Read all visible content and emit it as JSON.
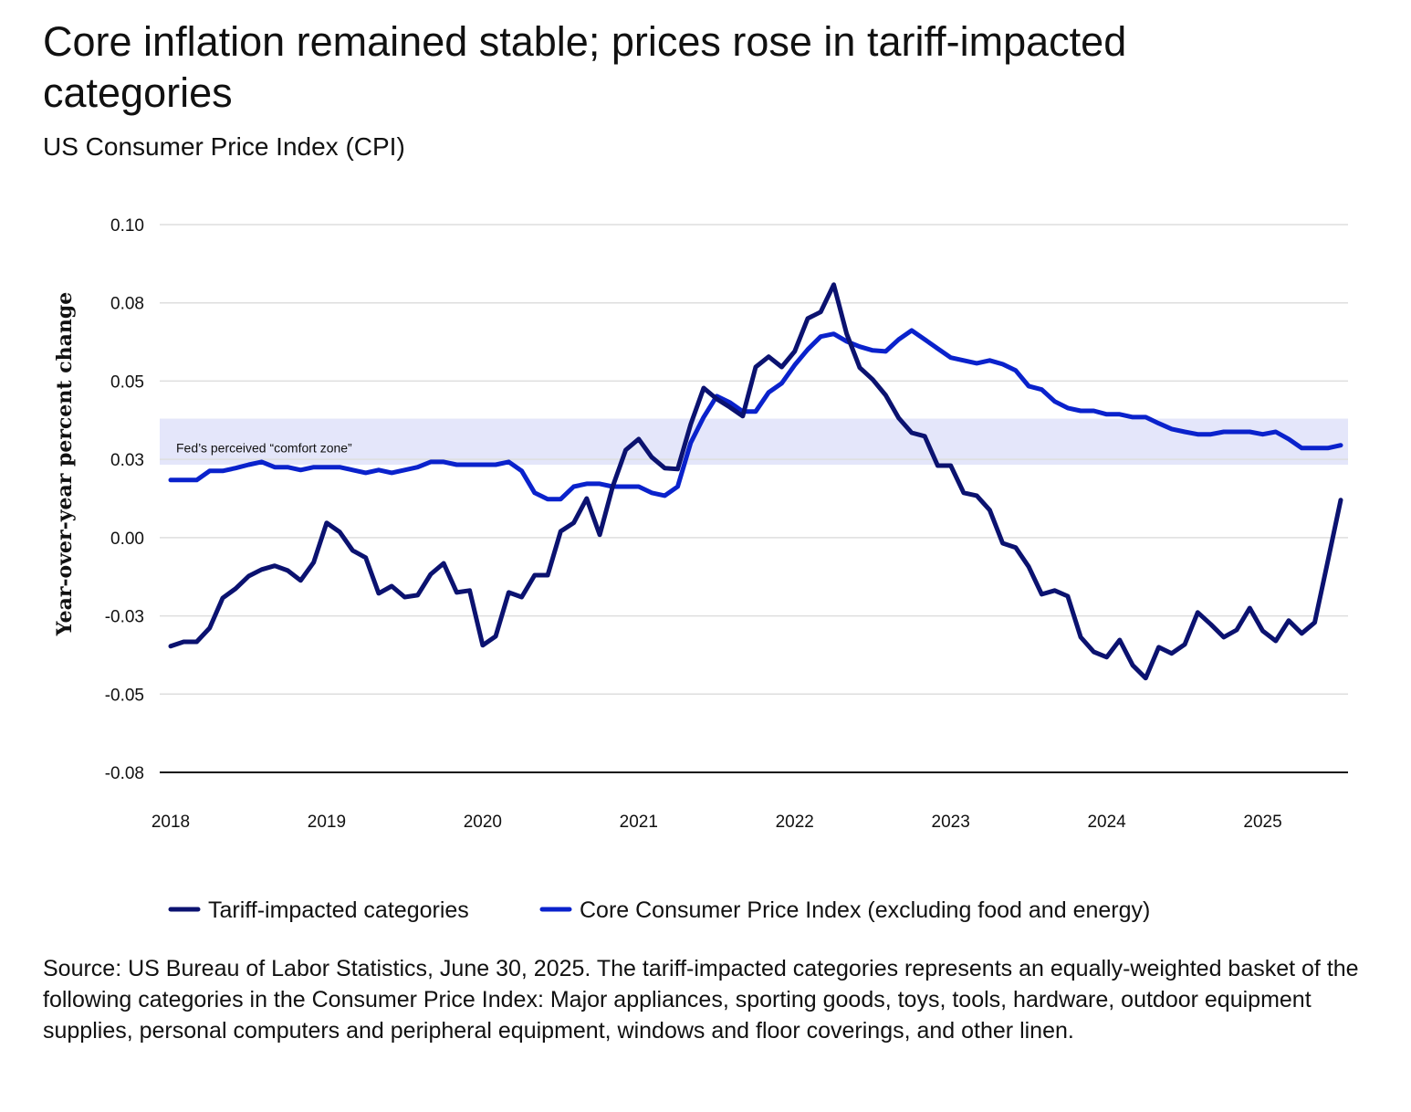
{
  "chart_data": {
    "type": "line",
    "title": "Core inflation remained stable; prices rose in tariff-impacted categories",
    "subtitle": "US Consumer Price Index (CPI)",
    "ylabel": "Year-over-year percent change",
    "xlabel": "",
    "ylim": [
      -0.075,
      0.1
    ],
    "xlim": [
      2018,
      2025.5
    ],
    "y_ticks": [
      0.1,
      0.075,
      0.05,
      0.025,
      0,
      -0.025,
      -0.05,
      -0.075
    ],
    "y_tick_labels": [
      "0.10",
      "0.08",
      "0.05",
      "0.03",
      "0.00",
      "-0.03",
      "-0.05",
      "-0.08"
    ],
    "x_ticks": [
      2018,
      2019,
      2020,
      2021,
      2022,
      2023,
      2024,
      2025
    ],
    "x_tick_labels": [
      "2018",
      "2019",
      "2020",
      "2021",
      "2022",
      "2023",
      "2024",
      "2025"
    ],
    "grid": true,
    "x_start": 2018,
    "x_step_months": 1,
    "band": {
      "label": "Fed’s perceived “comfort zone”",
      "y0": 0.0233,
      "y1": 0.038,
      "color": "#e4e6fa"
    },
    "legend_position": "bottom",
    "series": [
      {
        "name": "Tariff-impacted categories",
        "color": "#0b1270",
        "values": [
          -0.0347,
          -0.0333,
          -0.0333,
          -0.0289,
          -0.0193,
          -0.0163,
          -0.0123,
          -0.0102,
          -0.009,
          -0.0105,
          -0.0137,
          -0.0079,
          0.0047,
          0.0018,
          -0.0041,
          -0.0064,
          -0.0178,
          -0.0155,
          -0.019,
          -0.0184,
          -0.0117,
          -0.0082,
          -0.0175,
          -0.0169,
          -0.0344,
          -0.0315,
          -0.0175,
          -0.019,
          -0.012,
          -0.012,
          0.002,
          0.0047,
          0.0125,
          0.0009,
          0.0163,
          0.028,
          0.0315,
          0.0257,
          0.0222,
          0.0219,
          0.0362,
          0.0478,
          0.0443,
          0.0417,
          0.0388,
          0.0545,
          0.0578,
          0.0545,
          0.0595,
          0.07,
          0.0721,
          0.0808,
          0.0651,
          0.0543,
          0.0505,
          0.0455,
          0.0382,
          0.0335,
          0.0324,
          0.023,
          0.023,
          0.0143,
          0.0134,
          0.0088,
          -0.0018,
          -0.0032,
          -0.0093,
          -0.0181,
          -0.0169,
          -0.0187,
          -0.0318,
          -0.0365,
          -0.0382,
          -0.0327,
          -0.0408,
          -0.0449,
          -0.035,
          -0.037,
          -0.0341,
          -0.0239,
          -0.0277,
          -0.0318,
          -0.0295,
          -0.0225,
          -0.0298,
          -0.033,
          -0.0265,
          -0.0306,
          -0.0271,
          -0.0076,
          0.012
        ]
      },
      {
        "name": "Core Consumer Price Index (excluding food and energy)",
        "color": "#0a22cc",
        "values": [
          0.0184,
          0.0184,
          0.0184,
          0.0213,
          0.0213,
          0.0222,
          0.0233,
          0.0242,
          0.0225,
          0.0225,
          0.0216,
          0.0225,
          0.0225,
          0.0225,
          0.0216,
          0.0207,
          0.0216,
          0.0207,
          0.0216,
          0.0225,
          0.0242,
          0.0242,
          0.0233,
          0.0233,
          0.0233,
          0.0233,
          0.0242,
          0.0213,
          0.0143,
          0.0123,
          0.0123,
          0.0163,
          0.0172,
          0.0172,
          0.0163,
          0.0163,
          0.0163,
          0.0143,
          0.0134,
          0.0163,
          0.0303,
          0.0385,
          0.0452,
          0.0432,
          0.0403,
          0.0403,
          0.0464,
          0.0493,
          0.0551,
          0.0601,
          0.0642,
          0.0651,
          0.0627,
          0.061,
          0.0598,
          0.0595,
          0.0633,
          0.0662,
          0.0633,
          0.0604,
          0.0575,
          0.0566,
          0.0557,
          0.0566,
          0.0554,
          0.0534,
          0.0484,
          0.0473,
          0.0435,
          0.0414,
          0.0405,
          0.0405,
          0.0394,
          0.0394,
          0.0385,
          0.0385,
          0.0365,
          0.0347,
          0.0338,
          0.033,
          0.033,
          0.0338,
          0.0338,
          0.0338,
          0.033,
          0.0338,
          0.0315,
          0.0286,
          0.0286,
          0.0286,
          0.0295
        ]
      }
    ]
  },
  "footnote": "Source: US Bureau of Labor Statistics, June 30, 2025. The tariff-impacted categories represents an equally-weighted basket of the following categories in the Consumer Price Index: Major appliances, sporting goods, toys, tools, hardware, outdoor equipment supplies, personal computers and peripheral equipment, windows and floor coverings, and other linen."
}
